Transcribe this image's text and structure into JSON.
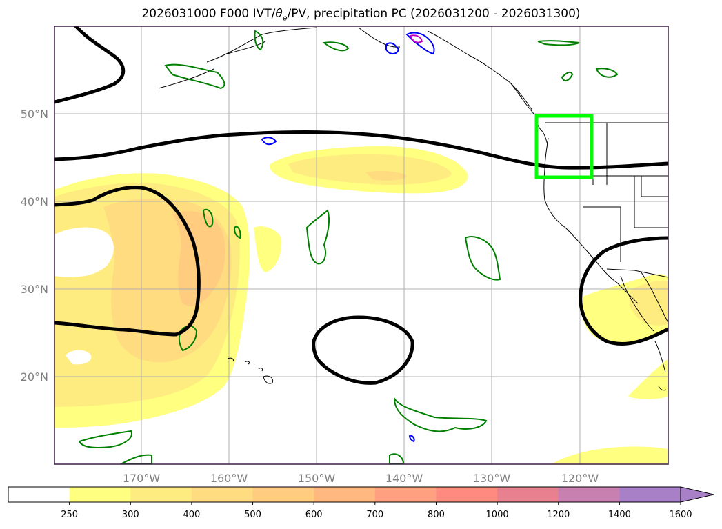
{
  "title": {
    "prefix": "2026031000 F000 IVT/",
    "theta": "θ",
    "theta_sub": "e",
    "suffix": "/PV, precipitation PC (2026031200 - 2026031300)"
  },
  "map": {
    "lon_labels": [
      "170°W",
      "160°W",
      "150°W",
      "140°W",
      "130°W",
      "120°W"
    ],
    "lat_labels": [
      "50°N",
      "40°N",
      "30°N",
      "20°N"
    ],
    "colors": {
      "frame": "#3d1f47",
      "grid": "#b0b0b0",
      "coast": "#000000",
      "ivt_contour": "#000000",
      "pv_contour": "#008000",
      "precip_blue": "#0000ff",
      "precip_magenta": "#c000c0",
      "highlight_box": "#00ff00"
    }
  },
  "colorbar": {
    "tick_labels": [
      "250",
      "300",
      "400",
      "500",
      "600",
      "700",
      "800",
      "1000",
      "1200",
      "1400",
      "1600"
    ],
    "colors": [
      "#ffffff",
      "#ffff80",
      "#ffec80",
      "#ffdc80",
      "#ffcc80",
      "#ffb880",
      "#ffa080",
      "#ff8a80",
      "#e88090",
      "#c880b0",
      "#a880c8"
    ]
  }
}
